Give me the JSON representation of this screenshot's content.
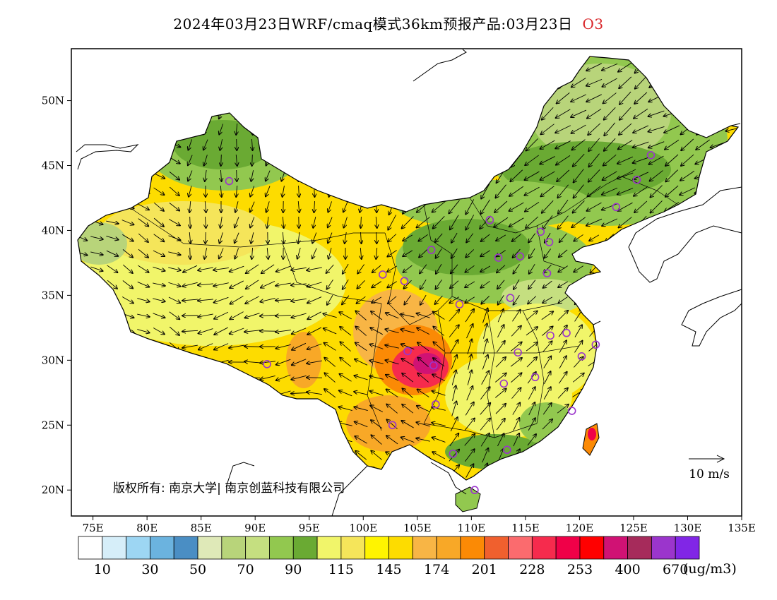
{
  "title": {
    "main": "2024年03月23日WRF/cmaq模式36km预报产品:03月23日",
    "species": "O3"
  },
  "map": {
    "lat_ticks": [
      {
        "lat": 50,
        "label": "50N"
      },
      {
        "lat": 45,
        "label": "45N"
      },
      {
        "lat": 40,
        "label": "40N"
      },
      {
        "lat": 35,
        "label": "35N"
      },
      {
        "lat": 30,
        "label": "30N"
      },
      {
        "lat": 25,
        "label": "25N"
      },
      {
        "lat": 20,
        "label": "20N"
      }
    ],
    "lon_ticks": [
      {
        "lon": 75,
        "label": "75E"
      },
      {
        "lon": 80,
        "label": "80E"
      },
      {
        "lon": 85,
        "label": "85E"
      },
      {
        "lon": 90,
        "label": "90E"
      },
      {
        "lon": 95,
        "label": "95E"
      },
      {
        "lon": 100,
        "label": "100E"
      },
      {
        "lon": 105,
        "label": "105E"
      },
      {
        "lon": 110,
        "label": "110E"
      },
      {
        "lon": 115,
        "label": "115E"
      },
      {
        "lon": 120,
        "label": "120E"
      },
      {
        "lon": 125,
        "label": "125E"
      },
      {
        "lon": 130,
        "label": "130E"
      },
      {
        "lon": 135,
        "label": "135E"
      }
    ],
    "copyright": "版权所有: 南京大学| 南京创蓝科技有限公司",
    "wind_reference": "10  m/s",
    "cities": [
      {
        "lon": 87.6,
        "lat": 43.8
      },
      {
        "lon": 91.1,
        "lat": 29.7
      },
      {
        "lon": 101.8,
        "lat": 36.6
      },
      {
        "lon": 103.8,
        "lat": 36.1
      },
      {
        "lon": 106.3,
        "lat": 38.5
      },
      {
        "lon": 108.9,
        "lat": 34.3
      },
      {
        "lon": 104.1,
        "lat": 30.7
      },
      {
        "lon": 106.5,
        "lat": 29.6
      },
      {
        "lon": 106.7,
        "lat": 26.6
      },
      {
        "lon": 102.7,
        "lat": 25.0
      },
      {
        "lon": 108.3,
        "lat": 22.8
      },
      {
        "lon": 110.3,
        "lat": 20.0
      },
      {
        "lon": 113.3,
        "lat": 23.1
      },
      {
        "lon": 113.0,
        "lat": 28.2
      },
      {
        "lon": 114.3,
        "lat": 30.6
      },
      {
        "lon": 115.9,
        "lat": 28.7
      },
      {
        "lon": 119.3,
        "lat": 26.1
      },
      {
        "lon": 120.2,
        "lat": 30.3
      },
      {
        "lon": 118.8,
        "lat": 32.1
      },
      {
        "lon": 117.3,
        "lat": 31.9
      },
      {
        "lon": 121.5,
        "lat": 31.2
      },
      {
        "lon": 117.0,
        "lat": 36.7
      },
      {
        "lon": 113.6,
        "lat": 34.8
      },
      {
        "lon": 112.5,
        "lat": 37.9
      },
      {
        "lon": 114.5,
        "lat": 38.0
      },
      {
        "lon": 116.4,
        "lat": 39.9
      },
      {
        "lon": 117.2,
        "lat": 39.1
      },
      {
        "lon": 111.7,
        "lat": 40.8
      },
      {
        "lon": 123.4,
        "lat": 41.8
      },
      {
        "lon": 125.3,
        "lat": 43.9
      },
      {
        "lon": 126.6,
        "lat": 45.8
      }
    ]
  },
  "colorbar": {
    "unit_label": "(ug/m3)",
    "colors": [
      "#ffffff",
      "#d6eef9",
      "#9dd6f3",
      "#6bb3df",
      "#4a8ec4",
      "#dfe9b8",
      "#b8d47a",
      "#c5df80",
      "#92c84f",
      "#6aaa33",
      "#f1f56a",
      "#f5e55a",
      "#fff400",
      "#fddc00",
      "#f8b545",
      "#f8a827",
      "#fb8a05",
      "#f0602e",
      "#fb6b6e",
      "#f62b4d",
      "#f00048",
      "#ff0000",
      "#d01274",
      "#a62b5b",
      "#9b35cc",
      "#8126e6"
    ],
    "labels": [
      "10",
      "30",
      "50",
      "70",
      "90",
      "115",
      "145",
      "174",
      "201",
      "228",
      "253",
      "400",
      "670"
    ]
  }
}
